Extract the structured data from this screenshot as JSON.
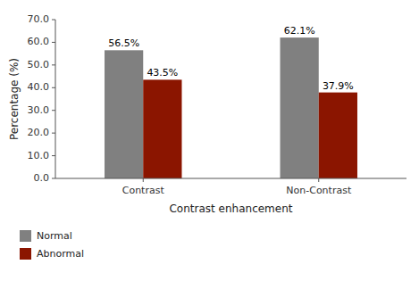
{
  "chart_data": {
    "type": "bar",
    "categories": [
      "Contrast",
      "Non-Contrast"
    ],
    "series": [
      {
        "name": "Normal",
        "color": "#808080",
        "values": [
          56.5,
          62.1
        ],
        "value_labels": [
          "56.5%",
          "62.1%"
        ]
      },
      {
        "name": "Abnormal",
        "color": "#8B1500",
        "values": [
          43.5,
          37.9
        ],
        "value_labels": [
          "43.5%",
          "37.9%"
        ]
      }
    ],
    "xlabel": "Contrast enhancement",
    "ylabel": "Percentage (%)",
    "ylim": [
      0,
      70
    ],
    "yticks": [
      {
        "value": 0,
        "label": "0.0"
      },
      {
        "value": 10,
        "label": "10.0"
      },
      {
        "value": 20,
        "label": "20.0"
      },
      {
        "value": 30,
        "label": "30.0"
      },
      {
        "value": 40,
        "label": "40.0"
      },
      {
        "value": 50,
        "label": "50.0"
      },
      {
        "value": 60,
        "label": "60.0"
      },
      {
        "value": 70,
        "label": "70.0"
      }
    ],
    "data_labels": true,
    "grid": false,
    "legend": "bottom"
  }
}
